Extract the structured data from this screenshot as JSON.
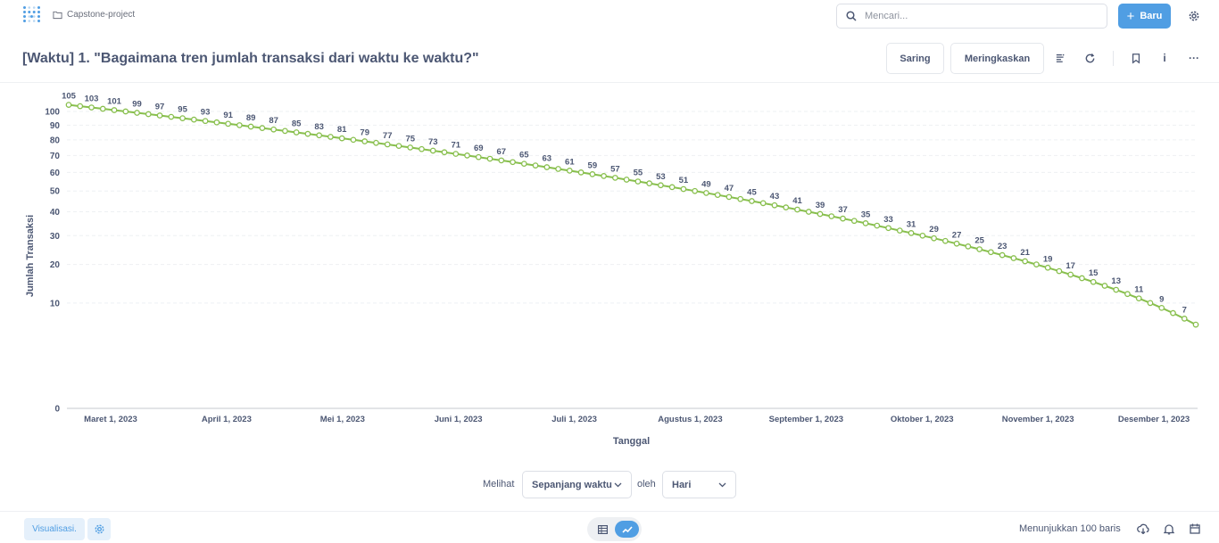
{
  "topbar": {
    "collection": "Capstone-project",
    "search_placeholder": "Mencari...",
    "new_label": "Baru",
    "accent": "#509ee3"
  },
  "header": {
    "title": "[Waktu] 1. \"Bagaimana tren jumlah transaksi dari waktu ke waktu?\"",
    "filter_label": "Saring",
    "summarize_label": "Meringkaskan",
    "info_label": "i",
    "more_label": "···"
  },
  "chart_data": {
    "type": "line",
    "xlabel": "Tanggal",
    "ylabel": "Jumlah Transaksi",
    "y_scale": "pow",
    "y_tick_labels": [
      "0",
      "10",
      "20",
      "30",
      "40",
      "50",
      "60",
      "70",
      "80",
      "90",
      "100"
    ],
    "x_tick_labels": [
      "Maret 1, 2023",
      "April 1, 2023",
      "Mei 1, 2023",
      "Juni 1, 2023",
      "Juli 1, 2023",
      "Agustus 1, 2023",
      "September 1, 2023",
      "Oktober 1, 2023",
      "November 1, 2023",
      "Desember 1, 2023"
    ],
    "series": [
      {
        "color": "#88bf4d",
        "values": [
          105,
          104,
          103,
          102,
          101,
          100,
          99,
          98,
          97,
          96,
          95,
          94,
          93,
          92,
          91,
          90,
          89,
          88,
          87,
          86,
          85,
          84,
          83,
          82,
          81,
          80,
          79,
          78,
          77,
          76,
          75,
          74,
          73,
          72,
          71,
          70,
          69,
          68,
          67,
          66,
          65,
          64,
          63,
          62,
          61,
          60,
          59,
          58,
          57,
          56,
          55,
          54,
          53,
          52,
          51,
          50,
          49,
          48,
          47,
          46,
          45,
          44,
          43,
          42,
          41,
          40,
          39,
          38,
          37,
          36,
          35,
          34,
          33,
          32,
          31,
          30,
          29,
          28,
          27,
          26,
          25,
          24,
          23,
          22,
          21,
          20,
          19,
          18,
          17,
          16,
          15,
          14,
          13,
          12,
          11,
          10,
          9,
          8,
          7,
          6
        ]
      }
    ],
    "grid": true
  },
  "view": {
    "view_label": "Melihat",
    "range_value": "Sepanjang waktu",
    "by_label": "oleh",
    "unit_value": "Hari"
  },
  "footer": {
    "viz_label": "Visualisasi.",
    "rows_text": "Menunjukkan 100 baris"
  }
}
